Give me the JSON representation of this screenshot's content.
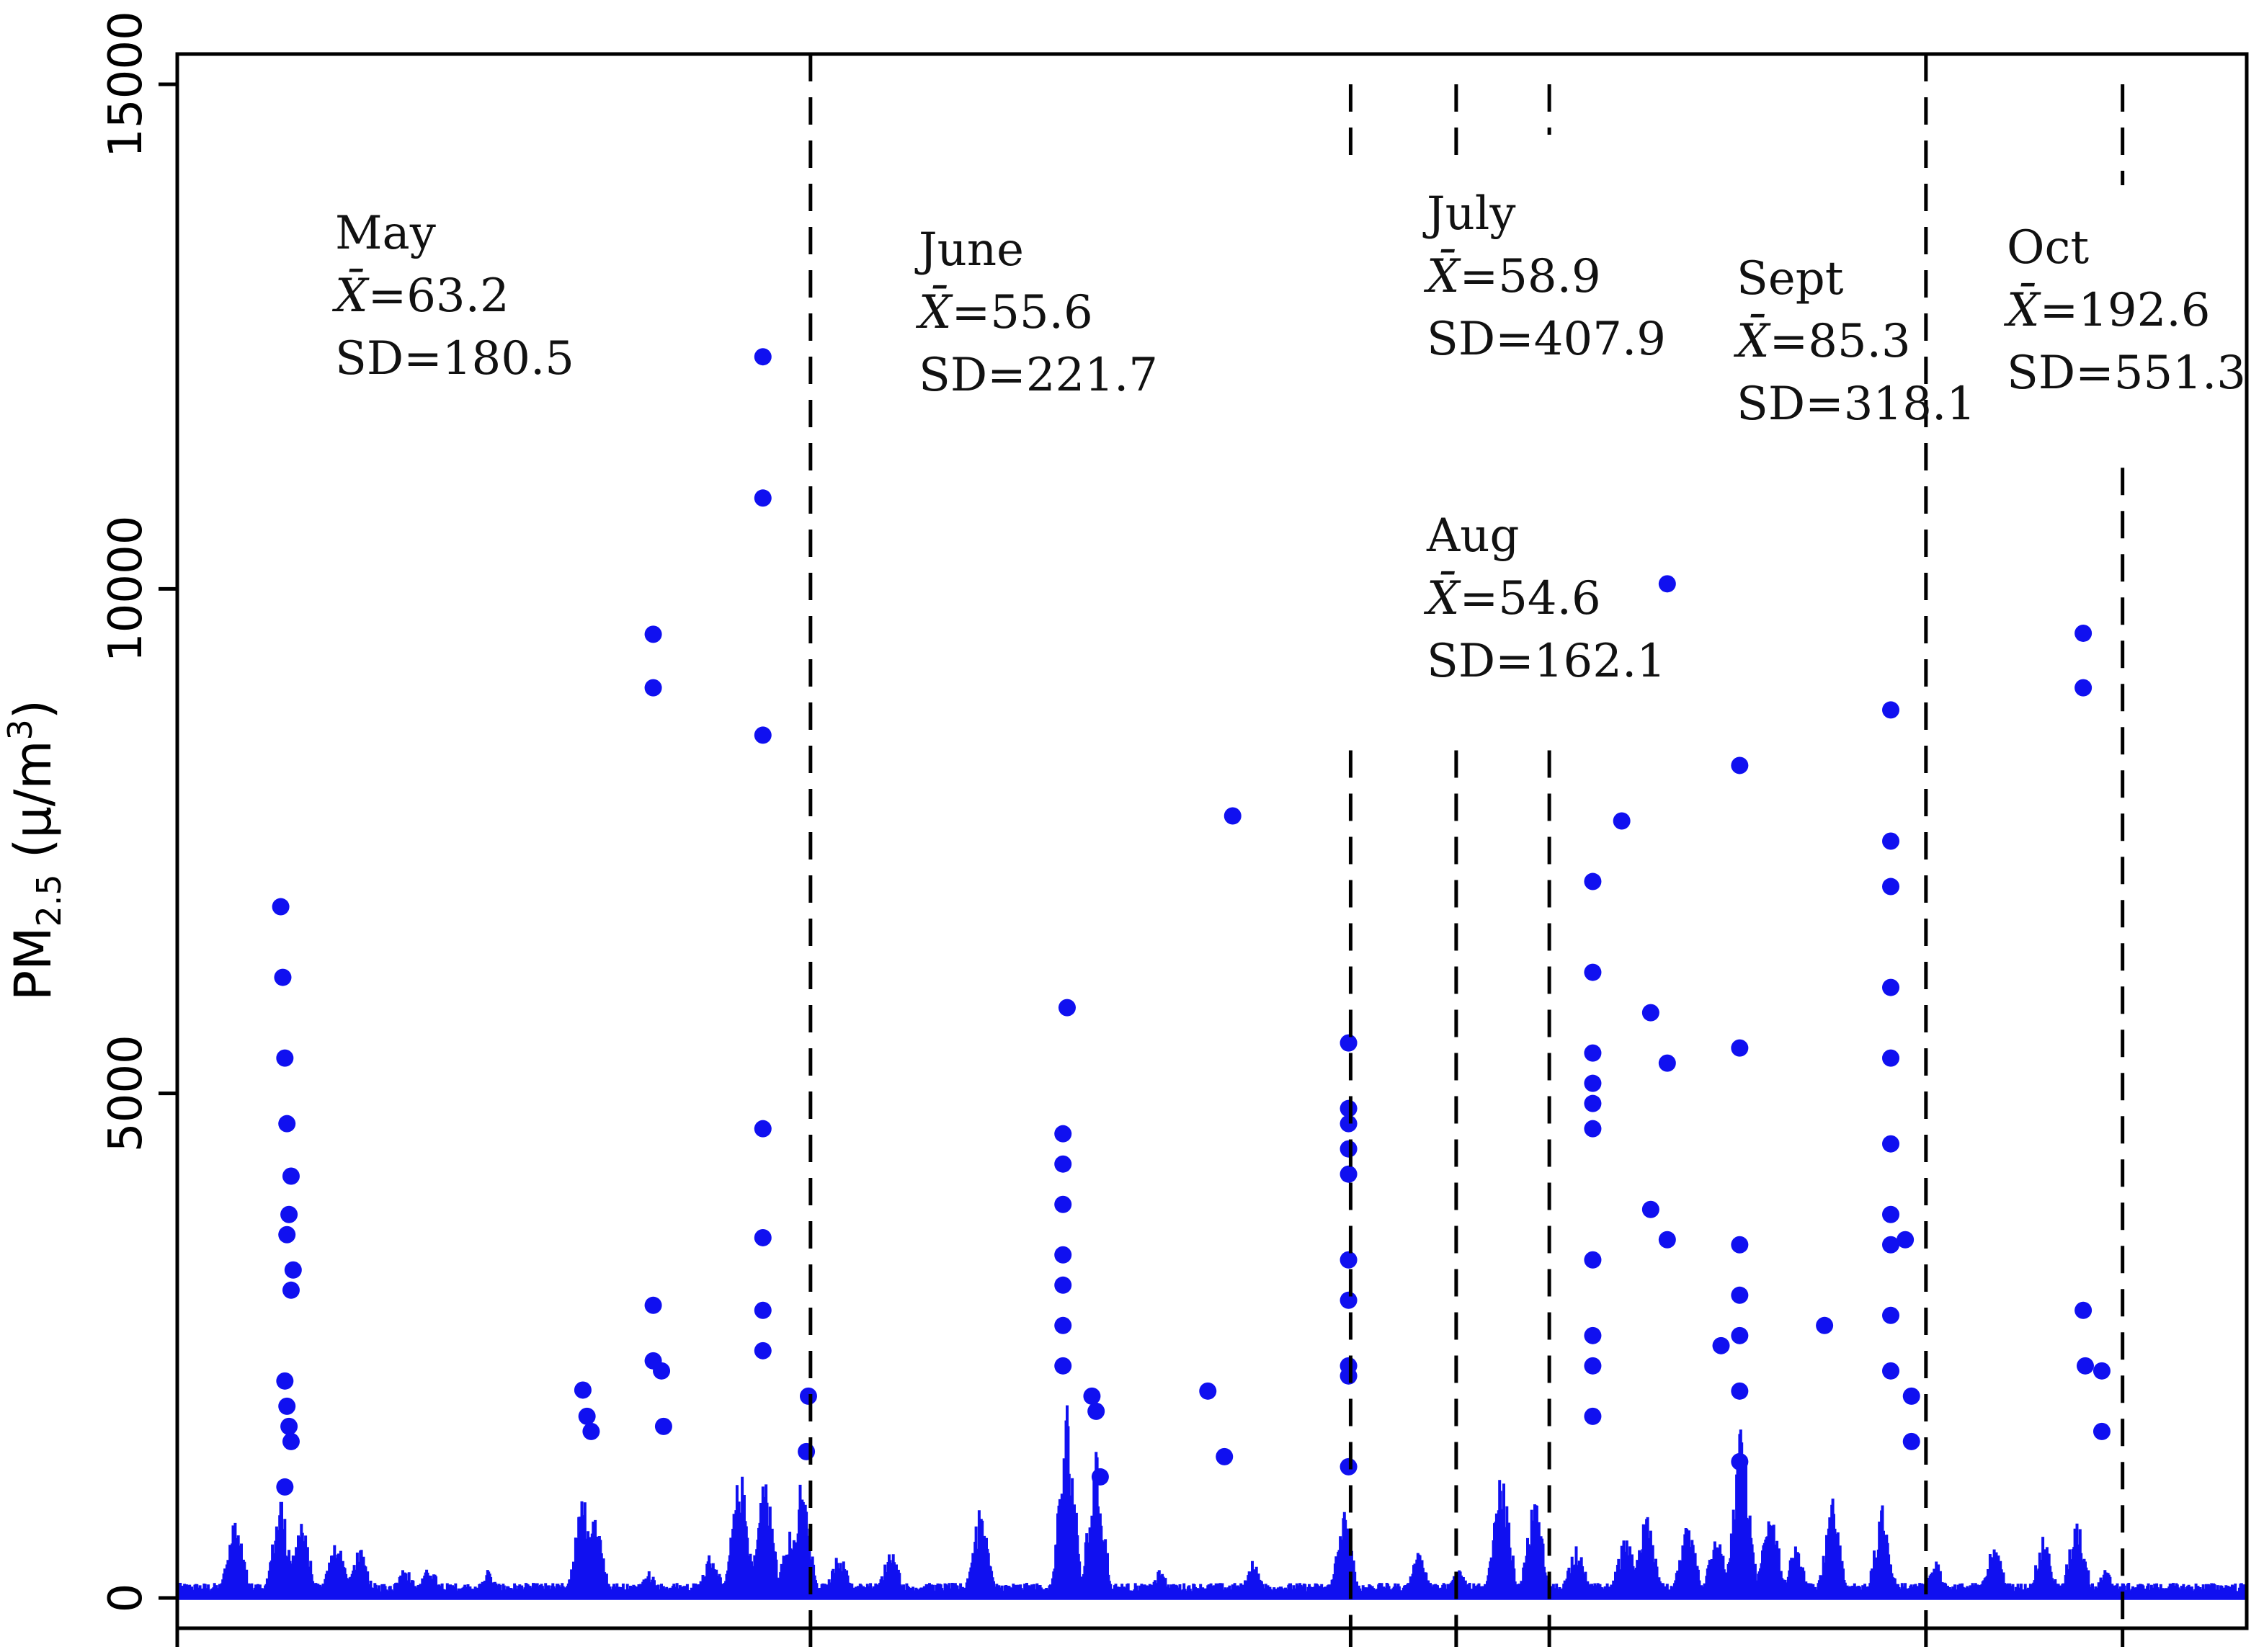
{
  "chart_data": {
    "type": "scatter",
    "title": "",
    "xlabel": "",
    "ylabel": {
      "prefix": "PM",
      "sub": "2.5",
      "suffix": " (μ/m",
      "sup": "3",
      "close": ")"
    },
    "ylim": [
      -300,
      15300
    ],
    "xlim": [
      0,
      1000
    ],
    "yticks": [
      0,
      5000,
      10000,
      15000
    ],
    "ytick_labels": [
      "0",
      "5000",
      "10000",
      "15000"
    ],
    "grid": false,
    "color": "#1010f0",
    "month_boundaries": [
      {
        "x": 306,
        "y_top": 15000,
        "y_bottom_gap_from": null
      },
      {
        "x": 567,
        "y_top": 14300,
        "y_gap": [
          8400,
          14300
        ]
      },
      {
        "x": 618,
        "y_top": 14300,
        "y_gap": [
          8400,
          14300
        ]
      },
      {
        "x": 663,
        "y_top": 14500,
        "y_gap": [
          8400,
          14500
        ]
      },
      {
        "x": 845,
        "y_top": 15000,
        "y_gap": null
      },
      {
        "x": 940,
        "y_top": 14000,
        "y_gap": [
          11200,
          14000
        ]
      }
    ],
    "annotations": [
      {
        "month": "May",
        "mean_label": "X̄",
        "mean": "=63.2",
        "sd": "SD=180.5"
      },
      {
        "month": "June",
        "mean_label": "X̄",
        "mean": "=55.6",
        "sd": "SD=221.7"
      },
      {
        "month": "July",
        "mean_label": "X̄",
        "mean": "=58.9",
        "sd": "SD=407.9"
      },
      {
        "month": "Aug",
        "mean_label": "X̄",
        "mean": "=54.6",
        "sd": "SD=162.1"
      },
      {
        "month": "Sept",
        "mean_label": "X̄",
        "mean": "=85.3",
        "sd": "SD=318.1"
      },
      {
        "month": "Oct",
        "mean_label": "X̄",
        "mean": "=192.6",
        "sd": "SD=551.3"
      }
    ],
    "outliers": [
      [
        50,
        6850
      ],
      [
        51,
        6150
      ],
      [
        52,
        5350
      ],
      [
        53,
        4700
      ],
      [
        55,
        4180
      ],
      [
        54,
        3800
      ],
      [
        53,
        3600
      ],
      [
        56,
        3250
      ],
      [
        55,
        3050
      ],
      [
        52,
        2150
      ],
      [
        53,
        1900
      ],
      [
        54,
        1700
      ],
      [
        55,
        1550
      ],
      [
        52,
        1100
      ],
      [
        196,
        2060
      ],
      [
        198,
        1800
      ],
      [
        200,
        1650
      ],
      [
        230,
        9550
      ],
      [
        230,
        9020
      ],
      [
        230,
        2900
      ],
      [
        230,
        2350
      ],
      [
        234,
        2250
      ],
      [
        235,
        1700
      ],
      [
        283,
        12300
      ],
      [
        283,
        10900
      ],
      [
        283,
        8550
      ],
      [
        283,
        4650
      ],
      [
        283,
        3570
      ],
      [
        283,
        2850
      ],
      [
        283,
        2450
      ],
      [
        305,
        2000
      ],
      [
        304,
        1450
      ],
      [
        430,
        5850
      ],
      [
        428,
        4600
      ],
      [
        428,
        4300
      ],
      [
        428,
        3900
      ],
      [
        428,
        3400
      ],
      [
        428,
        3100
      ],
      [
        428,
        2700
      ],
      [
        428,
        2300
      ],
      [
        442,
        2000
      ],
      [
        444,
        1850
      ],
      [
        446,
        1200
      ],
      [
        510,
        7750
      ],
      [
        506,
        1400
      ],
      [
        498,
        2050
      ],
      [
        566,
        5500
      ],
      [
        566,
        4850
      ],
      [
        566,
        4700
      ],
      [
        566,
        4450
      ],
      [
        566,
        4200
      ],
      [
        566,
        3350
      ],
      [
        566,
        2950
      ],
      [
        566,
        2300
      ],
      [
        566,
        2200
      ],
      [
        566,
        1300
      ],
      [
        684,
        7100
      ],
      [
        684,
        6200
      ],
      [
        684,
        5400
      ],
      [
        684,
        5100
      ],
      [
        684,
        4900
      ],
      [
        684,
        4650
      ],
      [
        684,
        3350
      ],
      [
        684,
        2600
      ],
      [
        684,
        2300
      ],
      [
        684,
        1800
      ],
      [
        698,
        7700
      ],
      [
        712,
        5800
      ],
      [
        712,
        3850
      ],
      [
        720,
        10050
      ],
      [
        720,
        5300
      ],
      [
        720,
        3550
      ],
      [
        746,
        2500
      ],
      [
        755,
        8250
      ],
      [
        755,
        5450
      ],
      [
        755,
        3500
      ],
      [
        755,
        3000
      ],
      [
        755,
        2600
      ],
      [
        755,
        2050
      ],
      [
        755,
        1350
      ],
      [
        796,
        2700
      ],
      [
        828,
        8800
      ],
      [
        828,
        7500
      ],
      [
        828,
        7050
      ],
      [
        828,
        6050
      ],
      [
        828,
        5350
      ],
      [
        828,
        4500
      ],
      [
        828,
        3800
      ],
      [
        828,
        3500
      ],
      [
        828,
        2800
      ],
      [
        828,
        2250
      ],
      [
        835,
        3550
      ],
      [
        838,
        2000
      ],
      [
        838,
        1550
      ],
      [
        921,
        9560
      ],
      [
        921,
        9020
      ],
      [
        921,
        2850
      ],
      [
        922,
        2300
      ],
      [
        930,
        2250
      ],
      [
        930,
        1650
      ]
    ]
  }
}
